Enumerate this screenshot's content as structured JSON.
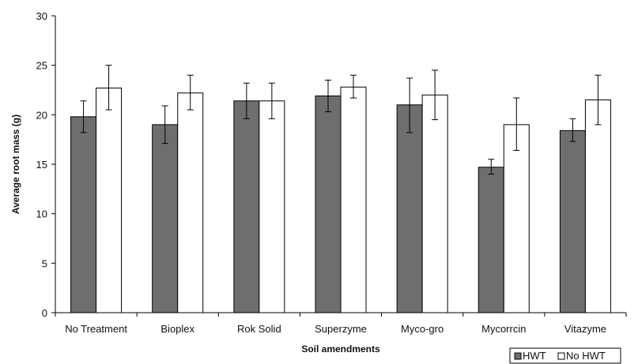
{
  "chart_data": {
    "type": "bar",
    "title": "",
    "xlabel": "Soil amendments",
    "ylabel": "Average root mass (g)",
    "ylim": [
      0,
      30
    ],
    "yticks": [
      0,
      5,
      10,
      15,
      20,
      25,
      30
    ],
    "grid": false,
    "legend_position": "bottom-right",
    "categories": [
      "No Treatment",
      "Bioplex",
      "Rok Solid",
      "Superzyme",
      "Myco-gro",
      "Mycorrcin",
      "Vitazyme"
    ],
    "series": [
      {
        "name": "HWT",
        "color": "#6e6e6e",
        "values": [
          19.8,
          19.0,
          21.4,
          21.9,
          21.0,
          14.7,
          18.4
        ],
        "error_low": [
          18.2,
          17.1,
          19.6,
          20.3,
          18.2,
          14.0,
          17.3
        ],
        "error_high": [
          21.4,
          20.9,
          23.2,
          23.5,
          23.7,
          15.5,
          19.6
        ]
      },
      {
        "name": "No HWT",
        "color": "#ffffff",
        "values": [
          22.7,
          22.2,
          21.4,
          22.8,
          22.0,
          19.0,
          21.5
        ],
        "error_low": [
          20.5,
          20.5,
          19.6,
          21.7,
          19.5,
          16.4,
          19.0
        ],
        "error_high": [
          25.0,
          24.0,
          23.2,
          24.0,
          24.5,
          21.7,
          24.0
        ]
      }
    ]
  }
}
